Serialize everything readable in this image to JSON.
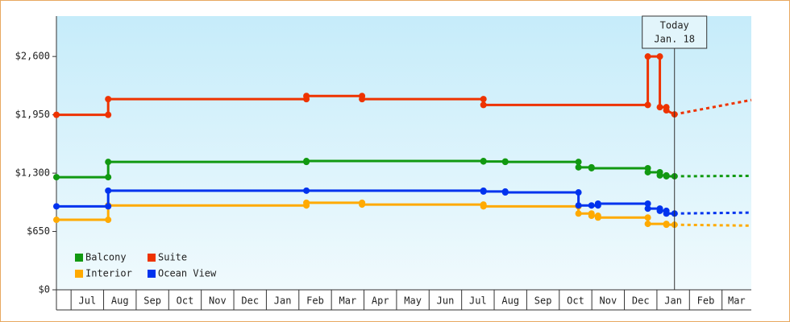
{
  "chart_data": {
    "type": "line",
    "step": true,
    "grid": false,
    "legend": "lower left",
    "ylim": [
      0,
      3050
    ],
    "yticks": [
      {
        "value": 0,
        "label": "$0"
      },
      {
        "value": 650,
        "label": "$650"
      },
      {
        "value": 1300,
        "label": "$1,300"
      },
      {
        "value": 1950,
        "label": "$1,950"
      },
      {
        "value": 2600,
        "label": "$2,600"
      }
    ],
    "xlim": [
      0.55,
      21.9
    ],
    "xticks": [
      1,
      2,
      3,
      4,
      5,
      6,
      7,
      8,
      9,
      10,
      11,
      12,
      13,
      14,
      15,
      16,
      17,
      18,
      19,
      20,
      21
    ],
    "categories": [
      "Jul",
      "Aug",
      "Sep",
      "Oct",
      "Nov",
      "Dec",
      "Jan",
      "Feb",
      "Mar",
      "Apr",
      "May",
      "Jun",
      "Jul",
      "Aug",
      "Sep",
      "Oct",
      "Nov",
      "Dec",
      "Jan",
      "Feb",
      "Mar"
    ],
    "annotation": {
      "x": 19.54,
      "lines": [
        "Today",
        "Jan. 18"
      ]
    },
    "series": [
      {
        "name": "Balcony",
        "color": "#119911",
        "x": [
          0.55,
          2.14,
          2.14,
          8.23,
          8.23,
          13.67,
          13.67,
          14.34,
          14.34,
          16.59,
          16.59,
          16.99,
          16.99,
          18.72,
          18.72,
          19.09,
          19.09,
          19.29,
          19.29,
          19.54
        ],
        "values": [
          1255,
          1255,
          1425,
          1425,
          1435,
          1435,
          1430,
          1430,
          1425,
          1425,
          1365,
          1365,
          1355,
          1355,
          1310,
          1310,
          1275,
          1275,
          1265,
          1265
        ],
        "forecast": {
          "x": [
            19.54,
            21.9
          ],
          "values": [
            1265,
            1270
          ]
        }
      },
      {
        "name": "Suite",
        "color": "#ee3300",
        "x": [
          0.55,
          2.14,
          2.14,
          8.23,
          8.23,
          9.94,
          9.94,
          13.67,
          13.67,
          18.72,
          18.72,
          19.09,
          19.09,
          19.29,
          19.29,
          19.54
        ],
        "values": [
          1950,
          1950,
          2125,
          2125,
          2160,
          2160,
          2125,
          2125,
          2060,
          2060,
          2600,
          2600,
          2035,
          2035,
          2000,
          1955
        ],
        "forecast": {
          "x": [
            19.54,
            21.9
          ],
          "values": [
            1955,
            2115
          ]
        }
      },
      {
        "name": "Interior",
        "color": "#ffaa00",
        "x": [
          0.55,
          2.14,
          2.14,
          8.23,
          8.23,
          9.94,
          9.94,
          13.67,
          13.67,
          16.59,
          16.59,
          16.99,
          16.99,
          17.19,
          17.19,
          18.72,
          18.72,
          19.29,
          19.29,
          19.54
        ],
        "values": [
          780,
          780,
          940,
          940,
          970,
          970,
          950,
          950,
          930,
          930,
          850,
          850,
          825,
          825,
          805,
          805,
          735,
          735,
          725,
          725
        ],
        "forecast": {
          "x": [
            19.54,
            21.9
          ],
          "values": [
            725,
            715
          ]
        }
      },
      {
        "name": "Ocean View",
        "color": "#0033ee",
        "x": [
          0.55,
          2.14,
          2.14,
          8.23,
          13.67,
          13.67,
          14.34,
          14.34,
          16.59,
          16.59,
          16.99,
          17.19,
          17.19,
          18.72,
          18.72,
          19.09,
          19.09,
          19.29,
          19.29,
          19.54
        ],
        "values": [
          930,
          930,
          1105,
          1105,
          1105,
          1095,
          1095,
          1085,
          1085,
          940,
          940,
          940,
          960,
          960,
          905,
          905,
          880,
          880,
          850,
          850
        ],
        "forecast": {
          "x": [
            19.54,
            21.9
          ],
          "values": [
            850,
            860
          ]
        }
      }
    ]
  }
}
